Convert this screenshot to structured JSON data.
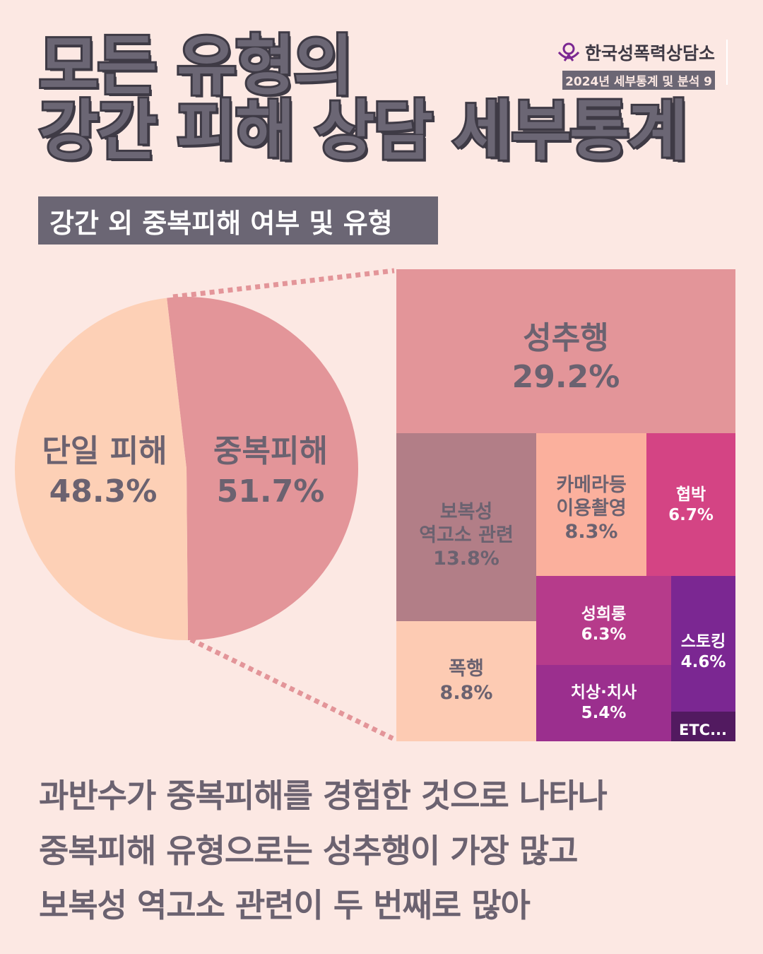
{
  "header": {
    "title_line1": "모든 유형의",
    "title_line2": "강간 피해 상담 세부통계",
    "org_name": "한국성폭력상담소",
    "series_label": "2024년 세부통계 및 분석 9"
  },
  "subtitle": "강간 외 중복피해 여부 및 유형",
  "chart_data": [
    {
      "type": "pie",
      "categories": [
        "단일 피해",
        "중복피해"
      ],
      "values": [
        48.3,
        51.7
      ],
      "value_labels": [
        "48.3%",
        "51.7%"
      ],
      "colors": [
        "#fdd0b6",
        "#e39599"
      ]
    },
    {
      "type": "treemap",
      "categories": [
        "성추행",
        "보복성 역고소 관련",
        "카메라등 이용촬영",
        "협박",
        "폭행",
        "성희롱",
        "치상·치사",
        "스토킹",
        "ETC..."
      ],
      "values": [
        29.2,
        13.8,
        8.3,
        6.7,
        8.8,
        6.3,
        5.4,
        4.6,
        null
      ],
      "value_labels": [
        "29.2%",
        "13.8%",
        "8.3%",
        "6.7%",
        "8.8%",
        "6.3%",
        "5.4%",
        "4.6%",
        ""
      ],
      "colors": [
        "#e39599",
        "#b27e87",
        "#fbb09d",
        "#d44484",
        "#fdcbb3",
        "#b63b8b",
        "#9b2f8e",
        "#7b2792",
        "#521a60"
      ]
    }
  ],
  "summary": [
    "과반수가 중복피해를 경험한 것으로 나타나",
    "중복피해 유형으로는 성추행이 가장 많고",
    "보복성 역고소 관련이 두 번째로 많아"
  ]
}
